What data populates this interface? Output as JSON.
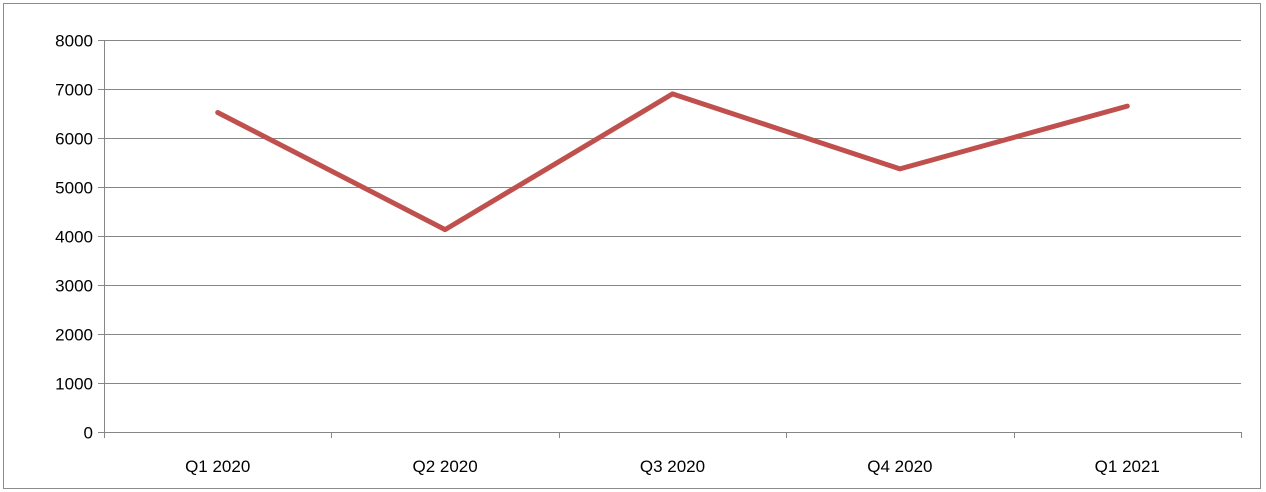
{
  "chart_data": {
    "type": "line",
    "title": "",
    "xlabel": "",
    "ylabel": "",
    "categories": [
      "Q1 2020",
      "Q2 2020",
      "Q3 2020",
      "Q4 2020",
      "Q1 2021"
    ],
    "series": [
      {
        "values": [
          6520,
          4130,
          6900,
          5370,
          6650
        ],
        "color": "#c0504d"
      }
    ],
    "ylim": [
      0,
      8000
    ],
    "yticks": [
      "0",
      "1000",
      "2000",
      "3000",
      "4000",
      "5000",
      "6000",
      "7000",
      "8000"
    ],
    "grid": true,
    "gridline_color": "#868686",
    "legend": "none"
  }
}
